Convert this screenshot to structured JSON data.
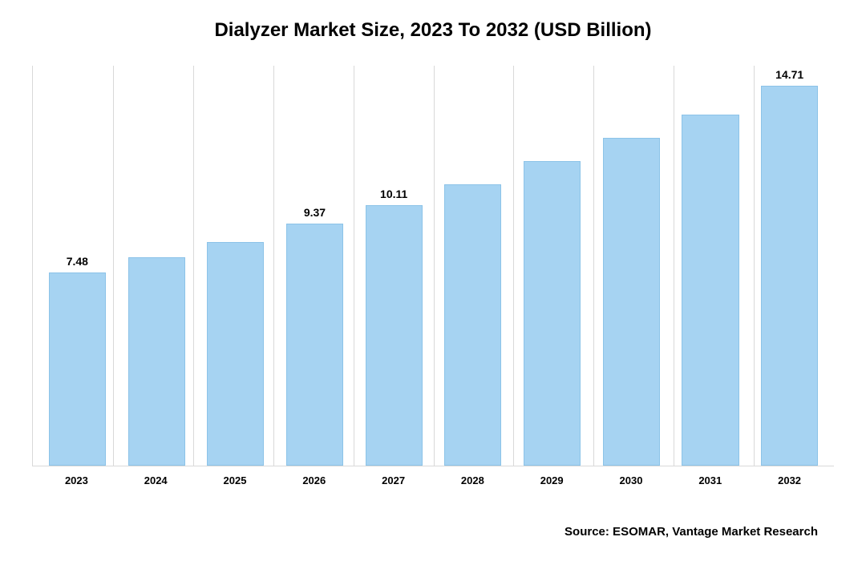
{
  "chart": {
    "type": "bar",
    "title": "Dialyzer Market Size, 2023 To 2032 (USD Billion)",
    "title_fontsize": 24,
    "categories": [
      "2023",
      "2024",
      "2025",
      "2026",
      "2027",
      "2028",
      "2029",
      "2030",
      "2031",
      "2032"
    ],
    "values": [
      7.48,
      8.07,
      8.68,
      9.37,
      10.11,
      10.9,
      11.8,
      12.7,
      13.6,
      14.71
    ],
    "value_labels": [
      "7.48",
      "",
      "",
      "9.37",
      "10.11",
      "",
      "",
      "",
      "",
      "14.71"
    ],
    "bar_color": "#a6d3f2",
    "bar_border_color": "#8cc3e8",
    "background_color": "#ffffff",
    "grid_color": "#d9d9d9",
    "ylim_max": 15.5,
    "bar_width_pct": 72,
    "label_fontsize": 14,
    "xtick_fontsize": 13
  },
  "source_text": "Source: ESOMAR, Vantage Market Research",
  "source_fontsize": 15
}
